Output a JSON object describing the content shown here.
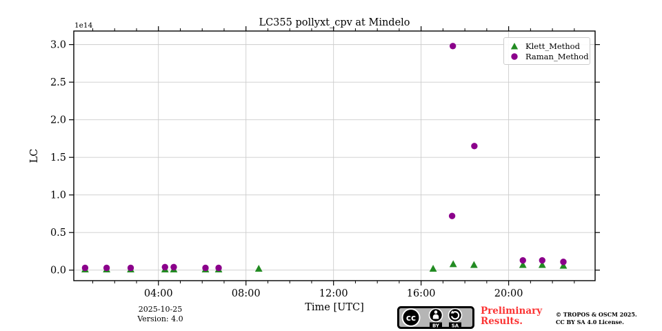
{
  "page": {
    "background": "#ffffff"
  },
  "chart_data": {
    "type": "scatter",
    "title": "LC355 pollyxt_cpv at Mindelo",
    "xlabel": "Time [UTC]",
    "ylabel": "LC",
    "offset_text": "1e14",
    "grid": true,
    "legend_position": "upper right",
    "xlim": [
      "00:08",
      "23:57"
    ],
    "ylim": [
      -0.14,
      3.18
    ],
    "x_major_ticks": [
      "04:00",
      "08:00",
      "12:00",
      "16:00",
      "20:00"
    ],
    "x_minor_tick_hours": [
      1,
      2,
      3,
      5,
      6,
      7,
      9,
      10,
      11,
      13,
      14,
      15,
      17,
      18,
      19,
      21,
      22,
      23
    ],
    "y_ticks": [
      "0.0",
      "0.5",
      "1.0",
      "1.5",
      "2.0",
      "2.5",
      "3.0"
    ],
    "grid_color": "#cccccc",
    "series": [
      {
        "name": "Klett_Method",
        "marker": "triangle",
        "color": "#228B22",
        "points": [
          {
            "t": "00:39",
            "v": 0.01
          },
          {
            "t": "01:38",
            "v": 0.01
          },
          {
            "t": "02:44",
            "v": 0.01
          },
          {
            "t": "04:18",
            "v": 0.01
          },
          {
            "t": "04:42",
            "v": 0.01
          },
          {
            "t": "06:09",
            "v": 0.01
          },
          {
            "t": "06:45",
            "v": 0.01
          },
          {
            "t": "08:35",
            "v": 0.02
          },
          {
            "t": "16:33",
            "v": 0.02
          },
          {
            "t": "17:28",
            "v": 0.08
          },
          {
            "t": "18:25",
            "v": 0.07
          },
          {
            "t": "20:39",
            "v": 0.07
          },
          {
            "t": "21:32",
            "v": 0.07
          },
          {
            "t": "22:30",
            "v": 0.06
          }
        ]
      },
      {
        "name": "Raman_Method",
        "marker": "circle",
        "color": "#8B008B",
        "points": [
          {
            "t": "00:39",
            "v": 0.03
          },
          {
            "t": "01:38",
            "v": 0.03
          },
          {
            "t": "02:44",
            "v": 0.03
          },
          {
            "t": "04:18",
            "v": 0.04
          },
          {
            "t": "04:42",
            "v": 0.04
          },
          {
            "t": "06:09",
            "v": 0.03
          },
          {
            "t": "06:45",
            "v": 0.03
          },
          {
            "t": "17:25",
            "v": 0.72
          },
          {
            "t": "17:27",
            "v": 2.98
          },
          {
            "t": "18:26",
            "v": 1.65
          },
          {
            "t": "20:39",
            "v": 0.13
          },
          {
            "t": "21:32",
            "v": 0.13
          },
          {
            "t": "22:30",
            "v": 0.11
          }
        ]
      }
    ]
  },
  "footer": {
    "date": "2025-10-25",
    "version": "Version: 4.0",
    "preliminary_line1": "Preliminary",
    "preliminary_line2": "Results.",
    "copyright_line1": "© TROPOS & OSCM 2025.",
    "copyright_line2": "CC BY SA 4.0 License.",
    "cc_badge": {
      "cc_label": "cc",
      "by_label": "BY",
      "sa_label": "SA"
    }
  }
}
